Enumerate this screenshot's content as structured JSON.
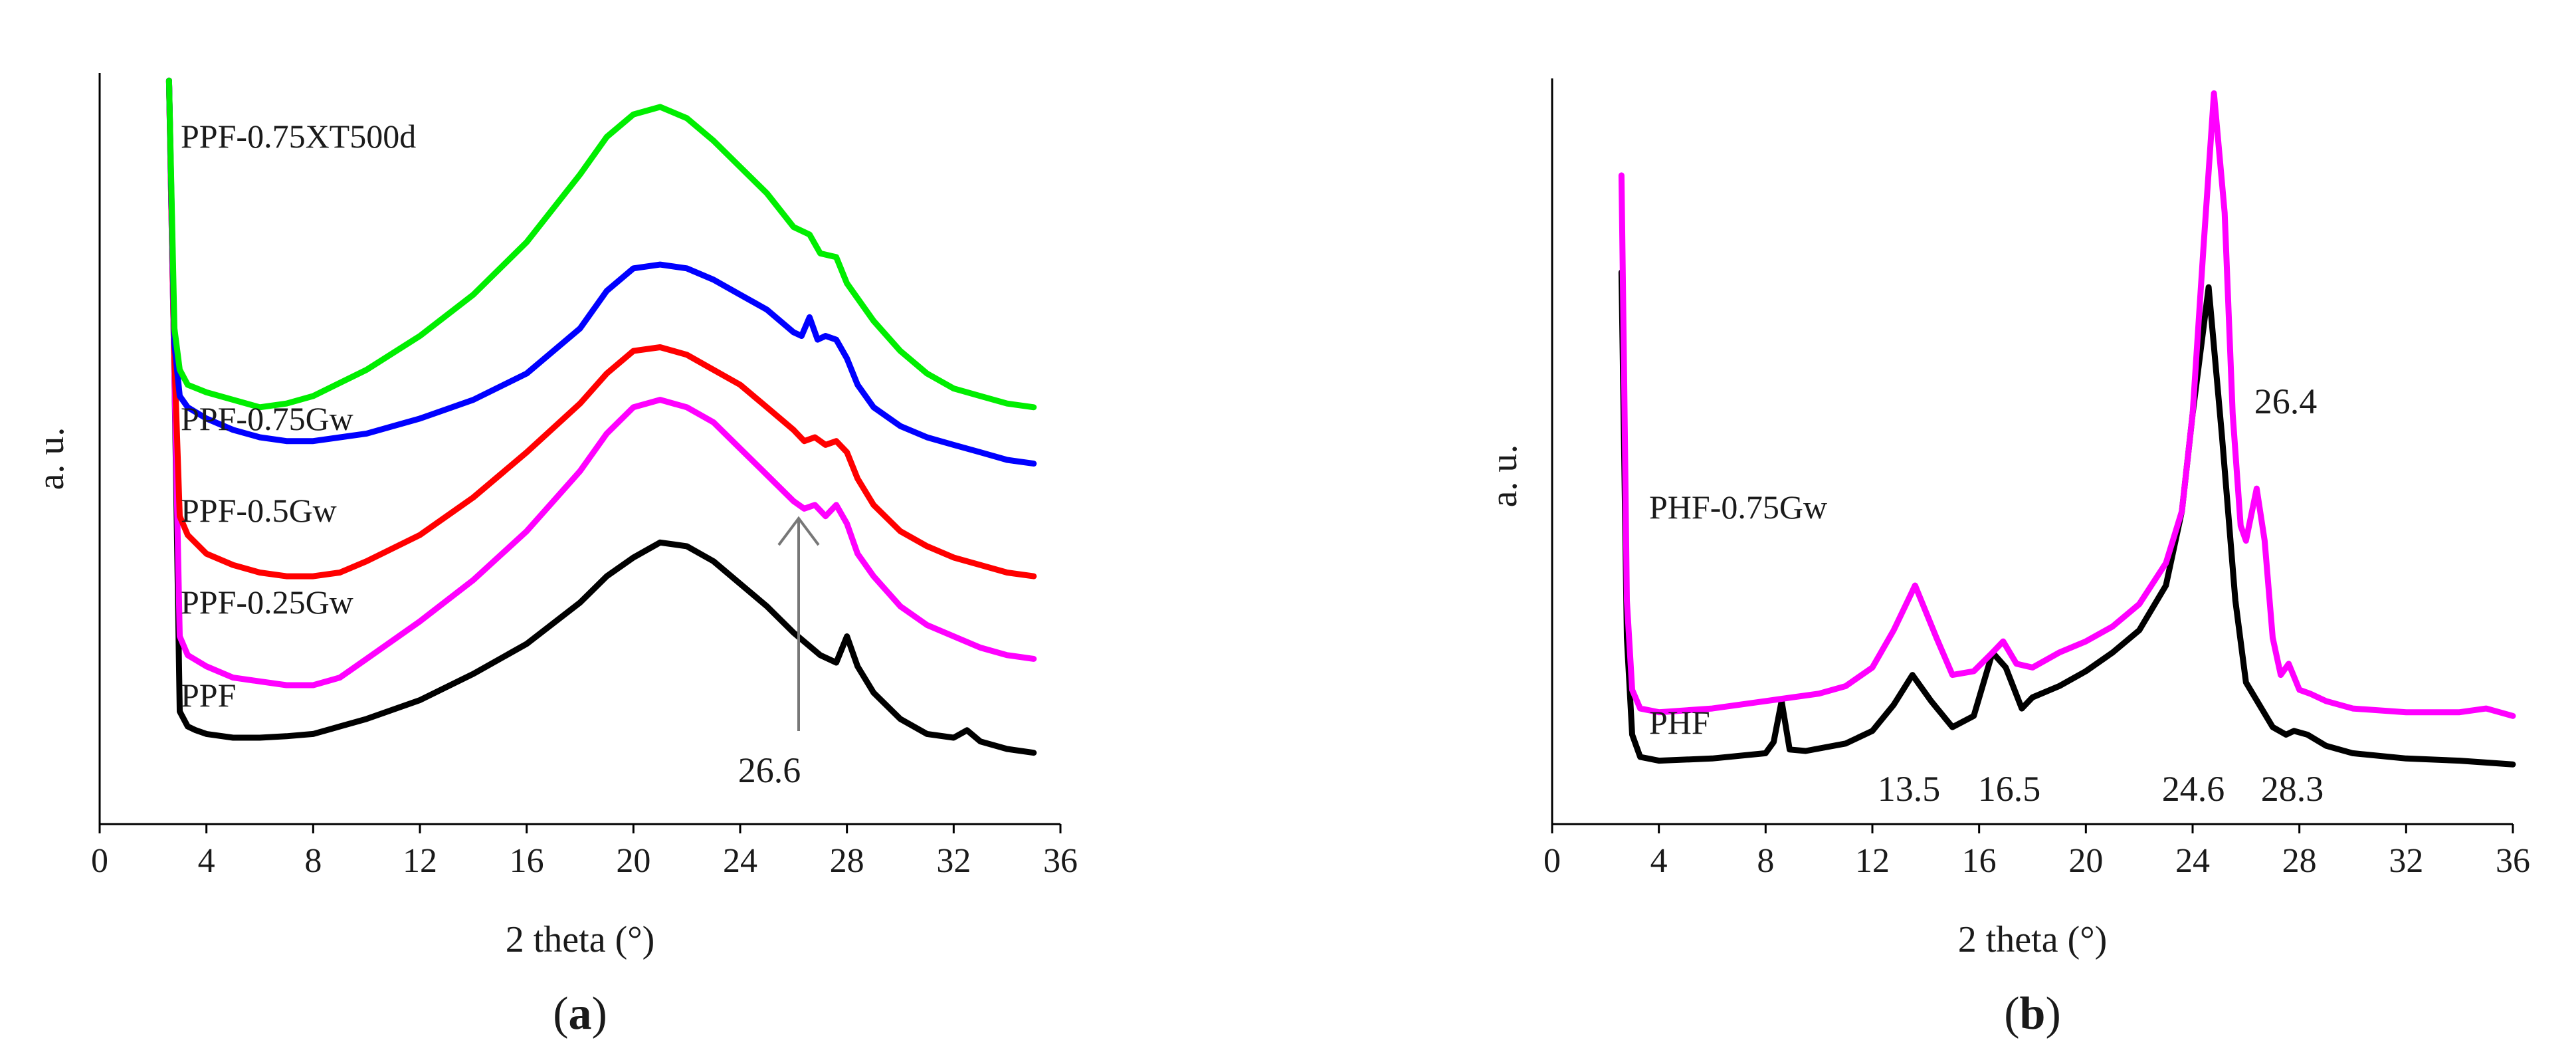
{
  "chart_data": [
    {
      "type": "line",
      "panel": "a",
      "caption_letter": "a",
      "xlabel": "2 theta (°)",
      "ylabel": "a. u.",
      "xlim": [
        0,
        36
      ],
      "ylim": [
        0,
        100
      ],
      "xticks": [
        0,
        4,
        8,
        12,
        16,
        20,
        24,
        28,
        32,
        36
      ],
      "series": [
        {
          "name": "PPF",
          "color": "#000000",
          "x": [
            2.6,
            2.8,
            3,
            3.3,
            3.6,
            4,
            5,
            6,
            7,
            8,
            10,
            12,
            14,
            16,
            18,
            19,
            20,
            21,
            22,
            23,
            24,
            25,
            26,
            27,
            27.6,
            28,
            28.4,
            29,
            30,
            31,
            32,
            32.5,
            33,
            34,
            35
          ],
          "y": [
            99,
            60,
            15,
            13,
            12.5,
            12,
            11.5,
            11.5,
            11.7,
            12,
            14,
            16.5,
            20,
            24,
            29.5,
            33,
            35.5,
            37.5,
            37,
            35,
            32,
            29,
            25.5,
            22.5,
            21.5,
            25,
            21,
            17.5,
            14,
            12,
            11.5,
            12.5,
            11,
            10,
            9.5
          ]
        },
        {
          "name": "PPF-0.25Gw",
          "color": "#ff00ff",
          "x": [
            2.6,
            2.8,
            3,
            3.3,
            4,
            5,
            6,
            7,
            8,
            9,
            10,
            12,
            14,
            16,
            18,
            19,
            20,
            21,
            22,
            23,
            24,
            25,
            26,
            26.4,
            26.8,
            27.2,
            27.6,
            28,
            28.4,
            29,
            30,
            31,
            32,
            33,
            34,
            35
          ],
          "y": [
            99,
            60,
            25,
            22.5,
            21,
            19.5,
            19,
            18.5,
            18.5,
            19.5,
            22,
            27,
            32.5,
            39,
            47,
            52,
            55.5,
            56.5,
            55.5,
            53.5,
            50,
            46.5,
            43,
            42,
            42.5,
            41,
            42.5,
            40,
            36,
            33,
            29,
            26.5,
            25,
            23.5,
            22.5,
            22
          ]
        },
        {
          "name": "PPF-0.5Gw",
          "color": "#ff0000",
          "x": [
            2.6,
            2.8,
            3,
            3.3,
            4,
            5,
            6,
            7,
            8,
            9,
            10,
            12,
            14,
            16,
            18,
            19,
            20,
            21,
            22,
            23,
            24,
            25,
            26,
            26.4,
            26.8,
            27.2,
            27.6,
            28,
            28.4,
            29,
            30,
            31,
            32,
            33,
            34,
            35
          ],
          "y": [
            99,
            62,
            41,
            38.5,
            36,
            34.5,
            33.5,
            33,
            33,
            33.5,
            35,
            38.5,
            43.5,
            49.5,
            56,
            60,
            63,
            63.5,
            62.5,
            60.5,
            58.5,
            55.5,
            52.5,
            51,
            51.5,
            50.5,
            51,
            49.5,
            46,
            42.5,
            39,
            37,
            35.5,
            34.5,
            33.5,
            33
          ]
        },
        {
          "name": "PPF-0.75Gw",
          "color": "#0000ff",
          "x": [
            2.6,
            2.8,
            3,
            3.3,
            4,
            5,
            6,
            7,
            8,
            10,
            12,
            14,
            16,
            18,
            19,
            20,
            21,
            22,
            23,
            24,
            25,
            26,
            26.3,
            26.6,
            26.9,
            27.2,
            27.6,
            28,
            28.4,
            29,
            30,
            31,
            32,
            33,
            34,
            35
          ],
          "y": [
            99,
            64,
            57,
            55.5,
            54,
            52.5,
            51.5,
            51,
            51,
            52,
            54,
            56.5,
            60,
            66,
            71,
            74,
            74.5,
            74,
            72.5,
            70.5,
            68.5,
            65.5,
            65,
            67.5,
            64.5,
            65,
            64.5,
            62,
            58.5,
            55.5,
            53,
            51.5,
            50.5,
            49.5,
            48.5,
            48
          ]
        },
        {
          "name": "PPF-0.75XT500d",
          "color": "#00ee00",
          "x": [
            2.6,
            2.8,
            3,
            3.3,
            4,
            5,
            6,
            7,
            8,
            10,
            12,
            14,
            16,
            18,
            19,
            20,
            21,
            22,
            23,
            24,
            25,
            26,
            26.6,
            27,
            27.6,
            28,
            29,
            30,
            31,
            32,
            33,
            34,
            35
          ],
          "y": [
            99,
            66,
            60.5,
            58.5,
            57.5,
            56.5,
            55.5,
            56,
            57,
            60.5,
            65,
            70.5,
            77.5,
            86.5,
            91.5,
            94.5,
            95.5,
            94,
            91,
            87.5,
            84,
            79.5,
            78.5,
            76,
            75.5,
            72,
            67,
            63,
            60,
            58,
            57,
            56,
            55.5
          ]
        }
      ],
      "annotations": [
        {
          "text": "26.6",
          "x": 26.6,
          "note": "arrow pointing up to peak"
        }
      ]
    },
    {
      "type": "line",
      "panel": "b",
      "caption_letter": "b",
      "xlabel": "2 theta (°)",
      "ylabel": "a. u.",
      "xlim": [
        0,
        36
      ],
      "ylim": [
        0,
        100
      ],
      "xticks": [
        0,
        4,
        8,
        12,
        16,
        20,
        24,
        28,
        32,
        36
      ],
      "series": [
        {
          "name": "PHF",
          "color": "#000000",
          "x": [
            2.6,
            2.7,
            2.8,
            3,
            3.3,
            4,
            6,
            8,
            8.3,
            8.6,
            8.9,
            9.5,
            11,
            12,
            12.8,
            13.5,
            14.2,
            15,
            15.8,
            16.5,
            17,
            17.6,
            18,
            19,
            20,
            21,
            22,
            23,
            23.6,
            24,
            24.6,
            25.1,
            25.6,
            26,
            27,
            27.5,
            27.8,
            28.3,
            29,
            30,
            32,
            34,
            36
          ],
          "y": [
            74,
            50,
            25,
            12,
            9,
            8.5,
            8.8,
            9.5,
            11,
            16.5,
            10,
            9.8,
            10.8,
            12.5,
            16,
            20,
            16.5,
            13,
            14.5,
            23,
            21,
            15.5,
            17,
            18.5,
            20.5,
            23,
            26,
            32,
            42,
            55,
            72,
            52,
            30,
            19,
            13,
            12,
            12.5,
            12,
            10.5,
            9.5,
            8.8,
            8.5,
            8
          ]
        },
        {
          "name": "PHF-0.75Gw",
          "color": "#ff00ff",
          "x": [
            2.6,
            2.7,
            2.8,
            3,
            3.3,
            4,
            6,
            8,
            10,
            11,
            12,
            12.8,
            13.6,
            14.4,
            15,
            15.8,
            16.5,
            16.9,
            17.4,
            18,
            19,
            20,
            21,
            22,
            23,
            23.6,
            24,
            24.4,
            24.8,
            25.2,
            25.5,
            25.8,
            26,
            26.4,
            26.7,
            27,
            27.3,
            27.6,
            28,
            28.4,
            29,
            30,
            32,
            34,
            35,
            36
          ],
          "y": [
            87,
            60,
            30,
            18,
            15.5,
            15,
            15.5,
            16.5,
            17.5,
            18.5,
            21,
            26,
            32,
            25,
            20,
            20.5,
            23,
            24.5,
            21.5,
            21,
            23,
            24.5,
            26.5,
            29.5,
            35,
            42,
            55,
            77,
            98,
            82,
            55,
            40,
            38,
            45,
            38,
            25,
            20,
            21.5,
            18,
            17.5,
            16.5,
            15.5,
            15,
            15,
            15.5,
            14.5
          ]
        }
      ],
      "annotations": [
        {
          "text": "13.5",
          "x": 13.5
        },
        {
          "text": "16.5",
          "x": 16.5
        },
        {
          "text": "24.6",
          "x": 24.6
        },
        {
          "text": "28.3",
          "x": 28.3
        },
        {
          "text": "26.4",
          "x": 26.4
        }
      ]
    }
  ]
}
